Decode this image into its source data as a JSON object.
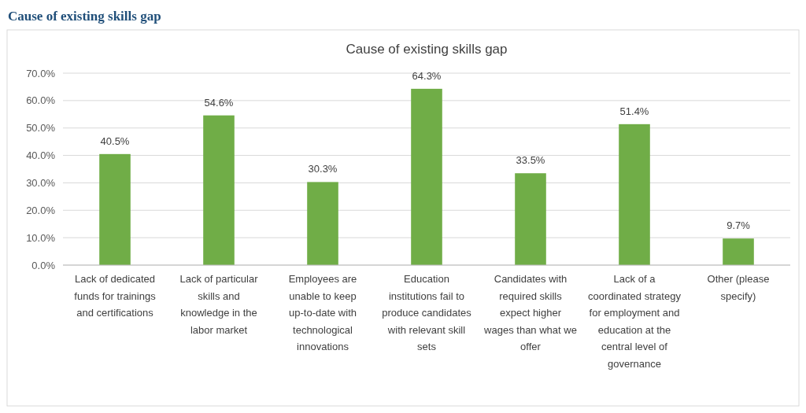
{
  "chart_data": {
    "type": "bar",
    "title": "Cause of existing skills gap",
    "annotations": [
      "Cause of existing skills gap"
    ],
    "categories": [
      "Lack of dedicated funds for trainings and certifications",
      "Lack of particular skills and knowledge in the labor market",
      "Employees are unable to keep up-to-date with technological innovations",
      "Education institutions fail to produce candidates with relevant skill sets",
      "Candidates with required skills expect higher wages than what we offer",
      "Lack of a coordinated strategy for employment and education at the central level of governance",
      "Other (please specify)"
    ],
    "values": [
      40.5,
      54.6,
      30.3,
      64.3,
      33.5,
      51.4,
      9.7
    ],
    "value_labels": [
      "40.5%",
      "54.6%",
      "30.3%",
      "64.3%",
      "33.5%",
      "51.4%",
      "9.7%"
    ],
    "color": "#70ad47",
    "ylim": [
      0,
      70
    ],
    "yticks": [
      {
        "value": 0,
        "label": "0.0%"
      },
      {
        "value": 10,
        "label": "10.0%"
      },
      {
        "value": 20,
        "label": "20.0%"
      },
      {
        "value": 30,
        "label": "30.0%"
      },
      {
        "value": 40,
        "label": "40.0%"
      },
      {
        "value": 50,
        "label": "50.0%"
      },
      {
        "value": 60,
        "label": "60.0%"
      },
      {
        "value": 70,
        "label": "70.0%"
      }
    ],
    "grid": "y"
  }
}
